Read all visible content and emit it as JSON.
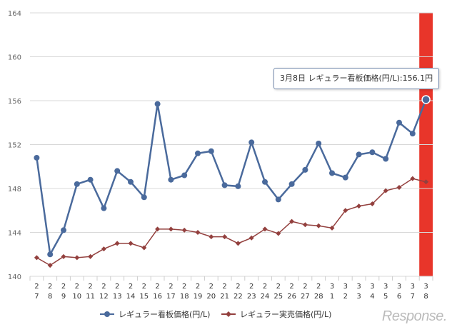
{
  "chart_data": {
    "type": "line",
    "title": "",
    "xlabel": "",
    "ylabel": "",
    "ylim": [
      140,
      164
    ],
    "yticks": [
      140,
      144,
      148,
      152,
      156,
      160,
      164
    ],
    "grid": true,
    "legend_position": "bottom",
    "categories": [
      "2/7",
      "2/8",
      "2/9",
      "2/10",
      "2/11",
      "2/12",
      "2/13",
      "2/14",
      "2/15",
      "2/16",
      "2/17",
      "2/18",
      "2/19",
      "2/20",
      "2/21",
      "2/22",
      "2/23",
      "2/24",
      "2/25",
      "2/26",
      "2/27",
      "2/28",
      "3/1",
      "3/2",
      "3/3",
      "3/4",
      "3/5",
      "3/6",
      "3/7",
      "3/8"
    ],
    "highlighted_category": "3/8",
    "highlight_color": "#e8352a",
    "series": [
      {
        "name": "レギュラー看板価格(円/L)",
        "color": "#4a6a9c",
        "marker": "circle",
        "values": [
          150.8,
          142.0,
          144.2,
          148.4,
          148.8,
          146.2,
          149.6,
          148.6,
          147.2,
          155.7,
          148.8,
          149.2,
          151.2,
          151.4,
          148.3,
          148.2,
          152.2,
          148.6,
          147.0,
          148.4,
          149.7,
          152.1,
          149.4,
          149.0,
          151.1,
          151.3,
          150.7,
          154.0,
          153.0,
          156.1
        ]
      },
      {
        "name": "レギュラー実売価格(円/L)",
        "color": "#93403e",
        "marker": "diamond",
        "values": [
          141.7,
          141.0,
          141.8,
          141.7,
          141.8,
          142.5,
          143.0,
          143.0,
          142.6,
          144.3,
          144.3,
          144.2,
          144.0,
          143.6,
          143.6,
          143.0,
          143.5,
          144.3,
          143.9,
          145.0,
          144.7,
          144.6,
          144.4,
          146.0,
          146.4,
          146.6,
          147.8,
          148.1,
          148.9,
          148.6
        ]
      }
    ],
    "tooltip": "3月8日 レギュラー看板価格(円/L):156.1円"
  },
  "logo": "Response."
}
